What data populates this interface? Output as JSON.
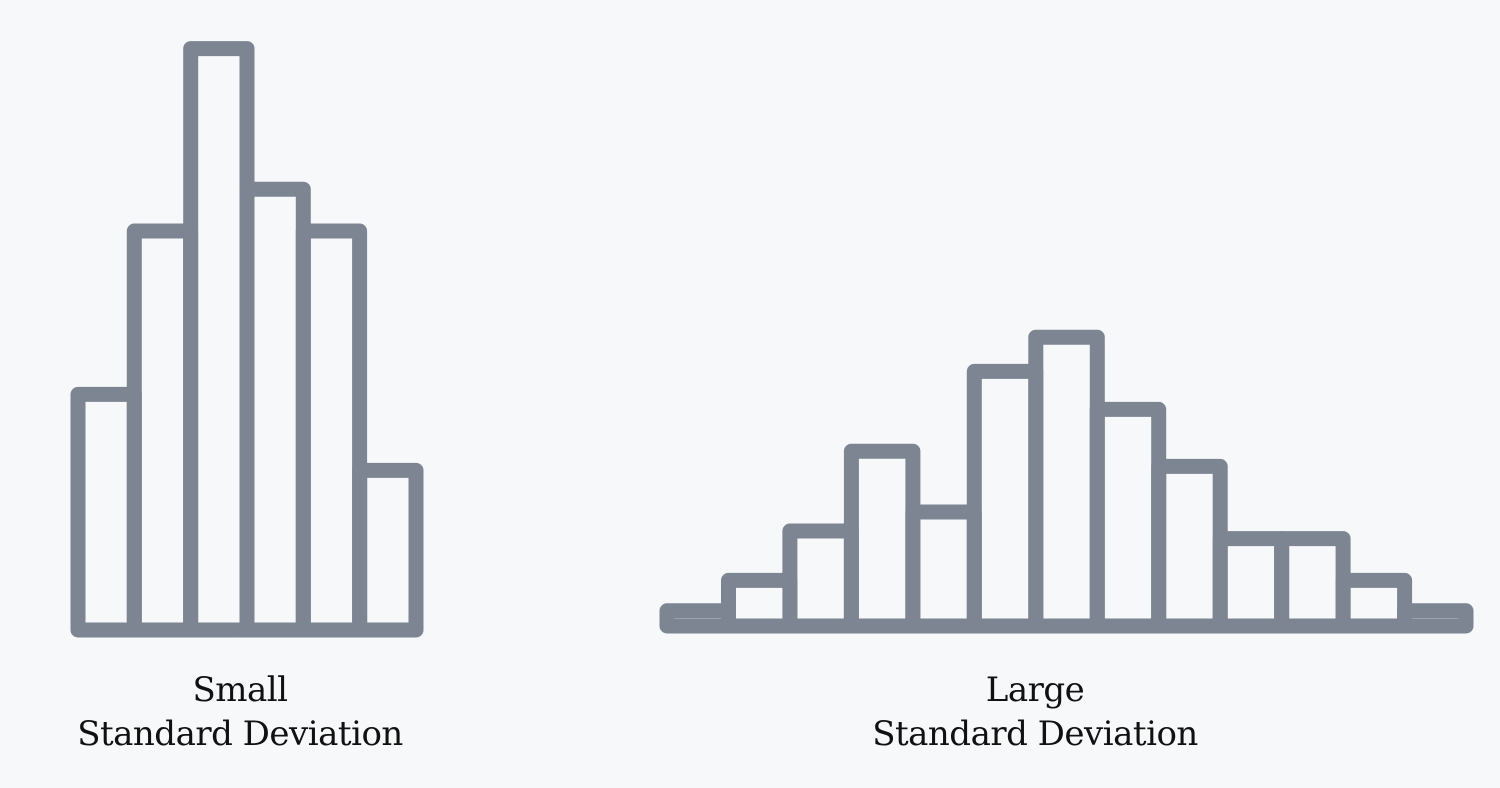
{
  "colors": {
    "background": "#f7f8fa",
    "bar_stroke": "#7c8591",
    "text": "#111111"
  },
  "chart_data": [
    {
      "type": "bar",
      "caption_line1": "Small",
      "caption_line2": "Standard Deviation",
      "values": [
        6.2,
        10.5,
        15.3,
        11.6,
        10.5,
        4.2
      ],
      "grid": false
    },
    {
      "type": "bar",
      "caption_line1": "Large",
      "caption_line2": "Standard Deviation",
      "values": [
        0.4,
        1.2,
        2.5,
        4.6,
        3.0,
        6.7,
        7.6,
        5.7,
        4.2,
        2.3,
        2.3,
        1.2,
        0.4
      ],
      "grid": false
    }
  ]
}
